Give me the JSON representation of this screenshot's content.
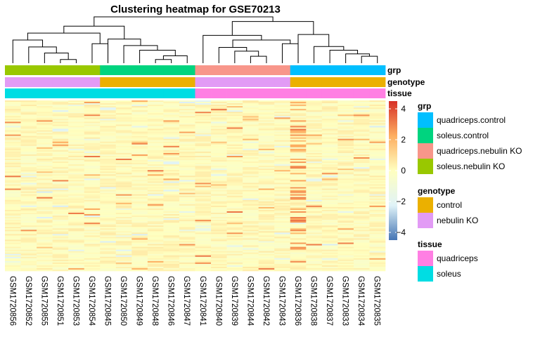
{
  "chart_data": {
    "type": "heatmap",
    "title": "Clustering heatmap for GSE70213",
    "samples": [
      "GSM1720856",
      "GSM1720852",
      "GSM1720855",
      "GSM1720851",
      "GSM1720853",
      "GSM1720854",
      "GSM1720845",
      "GSM1720850",
      "GSM1720849",
      "GSM1720848",
      "GSM1720846",
      "GSM1720847",
      "GSM1720841",
      "GSM1720840",
      "GSM1720839",
      "GSM1720844",
      "GSM1720842",
      "GSM1720843",
      "GSM1720836",
      "GSM1720838",
      "GSM1720837",
      "GSM1720833",
      "GSM1720834",
      "GSM1720835"
    ],
    "annotations": [
      {
        "name": "grp",
        "values": [
          "soleus.nebulin KO",
          "soleus.nebulin KO",
          "soleus.nebulin KO",
          "soleus.nebulin KO",
          "soleus.nebulin KO",
          "soleus.nebulin KO",
          "soleus.control",
          "soleus.control",
          "soleus.control",
          "soleus.control",
          "soleus.control",
          "soleus.control",
          "quadriceps.nebulin KO",
          "quadriceps.nebulin KO",
          "quadriceps.nebulin KO",
          "quadriceps.nebulin KO",
          "quadriceps.nebulin KO",
          "quadriceps.nebulin KO",
          "quadriceps.control",
          "quadriceps.control",
          "quadriceps.control",
          "quadriceps.control",
          "quadriceps.control",
          "quadriceps.control"
        ]
      },
      {
        "name": "genotype",
        "values": [
          "nebulin KO",
          "nebulin KO",
          "nebulin KO",
          "nebulin KO",
          "nebulin KO",
          "nebulin KO",
          "control",
          "control",
          "control",
          "control",
          "control",
          "control",
          "nebulin KO",
          "nebulin KO",
          "nebulin KO",
          "nebulin KO",
          "nebulin KO",
          "nebulin KO",
          "control",
          "control",
          "control",
          "control",
          "control",
          "control"
        ]
      },
      {
        "name": "tissue",
        "values": [
          "soleus",
          "soleus",
          "soleus",
          "soleus",
          "soleus",
          "soleus",
          "soleus",
          "soleus",
          "soleus",
          "soleus",
          "soleus",
          "soleus",
          "quadriceps",
          "quadriceps",
          "quadriceps",
          "quadriceps",
          "quadriceps",
          "quadriceps",
          "quadriceps",
          "quadriceps",
          "quadriceps",
          "quadriceps",
          "quadriceps",
          "quadriceps"
        ]
      }
    ],
    "legends": [
      {
        "title": "grp",
        "items": [
          {
            "label": "quadriceps.control",
            "color": "#00BFFF"
          },
          {
            "label": "soleus.control",
            "color": "#00D47F"
          },
          {
            "label": "quadriceps.nebulin KO",
            "color": "#F8968A"
          },
          {
            "label": "soleus.nebulin KO",
            "color": "#99C800"
          }
        ]
      },
      {
        "title": "genotype",
        "items": [
          {
            "label": "control",
            "color": "#EBB000"
          },
          {
            "label": "nebulin KO",
            "color": "#E29BF5"
          }
        ]
      },
      {
        "title": "tissue",
        "items": [
          {
            "label": "quadriceps",
            "color": "#FF7FE3"
          },
          {
            "label": "soleus",
            "color": "#00DDE3"
          }
        ]
      }
    ],
    "color_scale": {
      "ticks": [
        4,
        2,
        0,
        -2,
        -4
      ],
      "range": [
        -4.5,
        4.5
      ],
      "colors": [
        "#4575B4",
        "#E0F3F8",
        "#FFFFBF",
        "#FDAE61",
        "#D73027"
      ]
    },
    "dendrogram": {
      "leaves": 24,
      "merges": [
        [
          3,
          4,
          0.8
        ],
        [
          2,
          24,
          2.2
        ],
        [
          1,
          25,
          3.5
        ],
        [
          5,
          6,
          4.2
        ],
        [
          0,
          26,
          5.0
        ],
        [
          27,
          28,
          6.5
        ],
        [
          9,
          10,
          0.8
        ],
        [
          11,
          30,
          1.6
        ],
        [
          8,
          31,
          2.8
        ],
        [
          7,
          32,
          3.8
        ],
        [
          6,
          33,
          5.2
        ],
        [
          15,
          16,
          1.5
        ],
        [
          14,
          35,
          2.6
        ],
        [
          13,
          36,
          3.4
        ],
        [
          17,
          18,
          4.2
        ],
        [
          37,
          38,
          5.0
        ],
        [
          12,
          39,
          6.0
        ],
        [
          22,
          23,
          1.5
        ],
        [
          21,
          41,
          2.0
        ],
        [
          20,
          42,
          2.8
        ],
        [
          19,
          43,
          3.6
        ],
        [
          18,
          44,
          6.2
        ],
        [
          40,
          45,
          9.0
        ],
        [
          29,
          34,
          8.0
        ],
        [
          46,
          47,
          10.0
        ]
      ]
    }
  }
}
